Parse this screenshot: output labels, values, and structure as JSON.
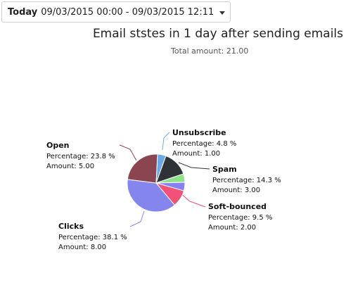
{
  "date_filter": {
    "period": "Today",
    "range": "09/03/2015 00:00 - 09/03/2015 12:11",
    "icon": "caret-down-icon"
  },
  "chart_data": {
    "type": "pie",
    "title": "Email ststes in 1 day after sending emails",
    "subtitle": "Total amount: 21.00",
    "percentage_label": "Percentage",
    "amount_label": "Amount",
    "slices": [
      {
        "name": "Unsubscribe",
        "percentage": "4.8 %",
        "amount": "1.00",
        "value": 1,
        "color": "#6aa9e6"
      },
      {
        "name": "Spam",
        "percentage": "14.3 %",
        "amount": "3.00",
        "value": 3,
        "color": "#2f3338"
      },
      {
        "name": "",
        "percentage": "",
        "amount": "",
        "value": 1,
        "color": "#8ee28a"
      },
      {
        "name": "",
        "percentage": "",
        "amount": "",
        "value": 1,
        "color": "#8a7ff0"
      },
      {
        "name": "Soft-bounced",
        "percentage": "9.5 %",
        "amount": "2.00",
        "value": 2,
        "color": "#f0527a"
      },
      {
        "name": "Clicks",
        "percentage": "38.1 %",
        "amount": "8.00",
        "value": 8,
        "color": "#8486ee"
      },
      {
        "name": "Open",
        "percentage": "23.8 %",
        "amount": "5.00",
        "value": 5,
        "color": "#8a4551"
      }
    ]
  }
}
